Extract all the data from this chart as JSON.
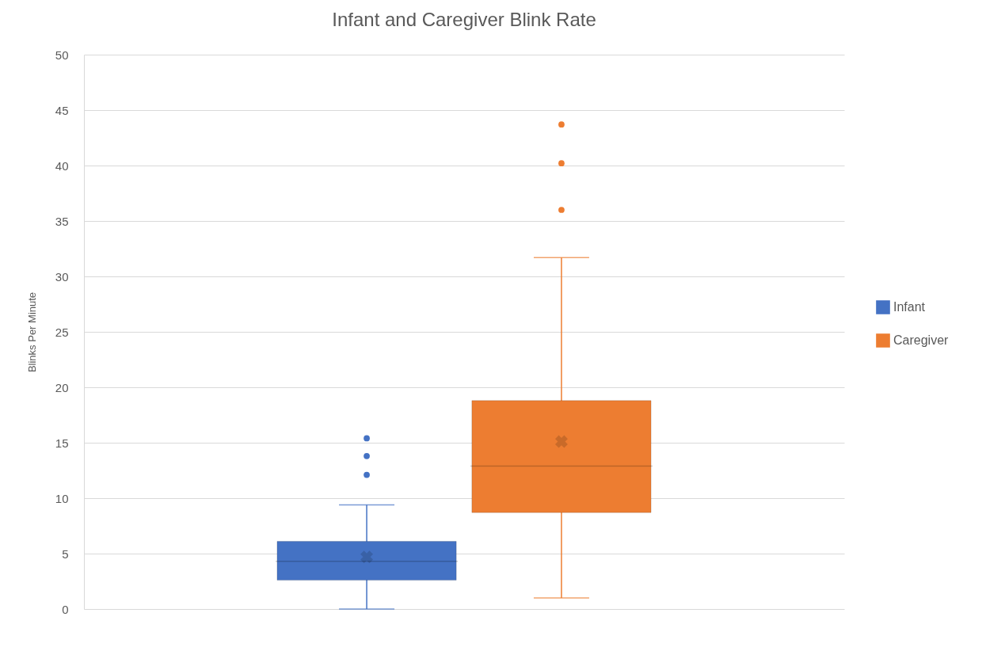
{
  "chart_data": {
    "type": "box",
    "title": "Infant and Caregiver Blink Rate",
    "ylabel": "Blinks Per Minute",
    "categories": [
      null
    ],
    "series": [
      {
        "name": "Infant",
        "color": "#4472c4",
        "boxes": [
          {
            "low": 0,
            "q1": 2.6,
            "median": 4.3,
            "q3": 6.1,
            "high": 9.4,
            "mean": 4.7,
            "outliers": [
              12.1,
              13.8,
              15.4
            ]
          }
        ]
      },
      {
        "name": "Caregiver",
        "color": "#ed7d31",
        "boxes": [
          {
            "low": 1.0,
            "q1": 8.7,
            "median": 12.9,
            "q3": 18.8,
            "high": 31.7,
            "mean": 15.1,
            "outliers": [
              36.0,
              40.2,
              43.7
            ]
          }
        ]
      }
    ],
    "ylim": [
      0,
      50
    ],
    "yticks": [
      0,
      5,
      10,
      15,
      20,
      25,
      30,
      35,
      40,
      45,
      50
    ],
    "grid": "y",
    "legend": "right"
  }
}
